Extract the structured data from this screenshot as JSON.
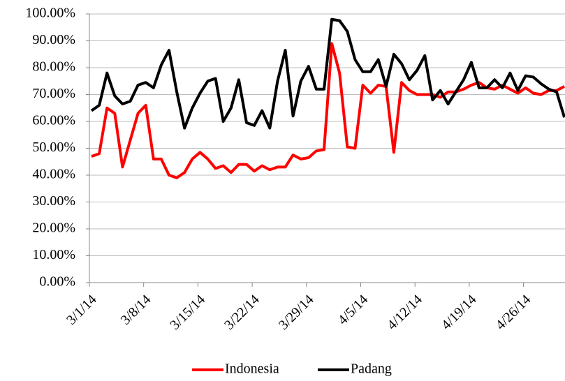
{
  "chart_data": {
    "type": "line",
    "categories": [
      "3/1/14",
      null,
      null,
      null,
      null,
      null,
      null,
      "3/8/14",
      null,
      null,
      null,
      null,
      null,
      null,
      "3/15/14",
      null,
      null,
      null,
      null,
      null,
      null,
      "3/22/14",
      null,
      null,
      null,
      null,
      null,
      null,
      "3/29/14",
      null,
      null,
      null,
      null,
      null,
      null,
      "4/5/14",
      null,
      null,
      null,
      null,
      null,
      null,
      "4/12/14",
      null,
      null,
      null,
      null,
      null,
      null,
      "4/19/14",
      null,
      null,
      null,
      null,
      null,
      null,
      "4/26/14",
      null,
      null,
      null,
      null,
      null
    ],
    "series": [
      {
        "name": "Indonesia",
        "color": "#ff0000",
        "values": [
          47,
          48,
          65,
          63,
          43,
          53,
          63,
          66,
          46,
          46,
          40,
          39,
          41,
          46,
          48.5,
          46,
          42.5,
          43.5,
          41,
          44,
          44,
          41.5,
          43.5,
          42,
          43,
          43,
          47.5,
          46,
          46.5,
          49,
          49.5,
          89,
          78,
          50.5,
          50,
          73.5,
          70.5,
          73.5,
          73,
          48.5,
          74.5,
          71.5,
          70,
          70,
          70,
          69,
          71,
          71,
          72,
          73.5,
          74.5,
          72.5,
          72,
          73.5,
          72,
          70.5,
          72.5,
          70.5,
          70,
          71.5,
          71.5,
          73
        ]
      },
      {
        "name": "Padang",
        "color": "#000000",
        "values": [
          64,
          66,
          78,
          69.5,
          66.5,
          67.5,
          73.5,
          74.5,
          72.5,
          81,
          86.5,
          71,
          57.5,
          65,
          70.5,
          75,
          76,
          60,
          65,
          75.5,
          59.5,
          58.5,
          64,
          57.5,
          75,
          86.5,
          62,
          75,
          80.5,
          72,
          72,
          98,
          97.5,
          93.5,
          83,
          78.5,
          78.5,
          83,
          73,
          85,
          81.5,
          75.5,
          79,
          84.5,
          68,
          71.5,
          66.5,
          71,
          75.5,
          82,
          72.5,
          72.5,
          75.5,
          72.5,
          78,
          71.5,
          77,
          76.5,
          74,
          72,
          71,
          61.5
        ]
      }
    ],
    "ylim": [
      0,
      100
    ],
    "yticks": [
      {
        "value": 0,
        "label": "0.00%"
      },
      {
        "value": 10,
        "label": "10.00%"
      },
      {
        "value": 20,
        "label": "20.00%"
      },
      {
        "value": 30,
        "label": "30.00%"
      },
      {
        "value": 40,
        "label": "40.00%"
      },
      {
        "value": 50,
        "label": "50.00%"
      },
      {
        "value": 60,
        "label": "60.00%"
      },
      {
        "value": 70,
        "label": "70.00%"
      },
      {
        "value": 80,
        "label": "80.00%"
      },
      {
        "value": 90,
        "label": "90.00%"
      },
      {
        "value": 100,
        "label": "100.00%"
      }
    ],
    "grid": true,
    "legend": "bottom"
  }
}
